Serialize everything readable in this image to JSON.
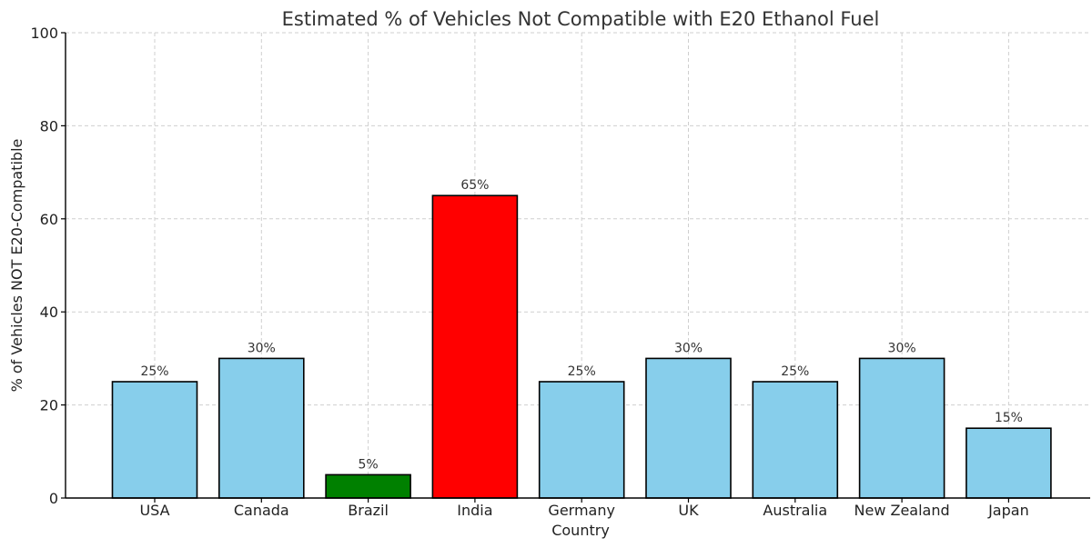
{
  "chart_data": {
    "type": "bar",
    "title": "Estimated % of Vehicles Not Compatible with E20 Ethanol Fuel",
    "xlabel": "Country",
    "ylabel": "% of Vehicles NOT E20-Compatible",
    "ylim": [
      0,
      100
    ],
    "yticks": [
      0,
      20,
      40,
      60,
      80,
      100
    ],
    "grid": true,
    "categories": [
      "USA",
      "Canada",
      "Brazil",
      "India",
      "Germany",
      "UK",
      "Australia",
      "New Zealand",
      "Japan"
    ],
    "values": [
      25,
      30,
      5,
      65,
      25,
      30,
      25,
      30,
      15
    ],
    "value_labels": [
      "25%",
      "30%",
      "5%",
      "65%",
      "25%",
      "30%",
      "25%",
      "30%",
      "15%"
    ],
    "colors": [
      "#87ceeb",
      "#87ceeb",
      "#008000",
      "#ff0000",
      "#87ceeb",
      "#87ceeb",
      "#87ceeb",
      "#87ceeb",
      "#87ceeb"
    ]
  }
}
